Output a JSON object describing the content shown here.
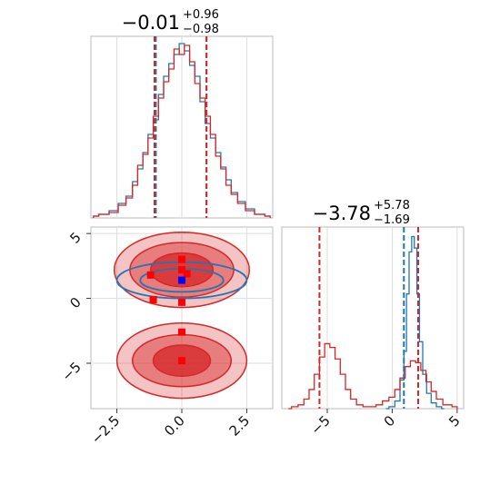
{
  "chart_data": [
    {
      "panel": "marginal-x",
      "type": "histogram-step",
      "title": {
        "main": "−0.01",
        "sup": "+0.96",
        "sub": "−0.98"
      },
      "xlim": [
        -3.5,
        3.5
      ],
      "x_ticks": [
        "−2.5",
        "0.0",
        "2.5"
      ],
      "quantile_lines": {
        "blue": [
          -1.0,
          0.95
        ],
        "red": [
          -1.05,
          0.95
        ]
      },
      "series": [
        {
          "color": "#1f77b4",
          "x": [
            -3.4,
            -3.0,
            -2.6,
            -2.3,
            -2.0,
            -1.8,
            -1.6,
            -1.4,
            -1.2,
            -1.0,
            -0.8,
            -0.6,
            -0.4,
            -0.2,
            0.0,
            0.2,
            0.4,
            0.6,
            0.8,
            1.0,
            1.2,
            1.4,
            1.6,
            1.8,
            2.0,
            2.3,
            2.6,
            3.0,
            3.4
          ],
          "y": [
            0.01,
            0.02,
            0.04,
            0.08,
            0.12,
            0.2,
            0.27,
            0.36,
            0.46,
            0.54,
            0.68,
            0.78,
            0.85,
            0.9,
            0.96,
            0.92,
            0.84,
            0.78,
            0.64,
            0.52,
            0.44,
            0.36,
            0.28,
            0.21,
            0.14,
            0.09,
            0.05,
            0.02,
            0.01
          ]
        },
        {
          "color": "#d62728",
          "x": [
            -3.4,
            -3.0,
            -2.6,
            -2.3,
            -2.0,
            -1.8,
            -1.6,
            -1.4,
            -1.2,
            -1.0,
            -0.8,
            -0.6,
            -0.4,
            -0.2,
            0.0,
            0.2,
            0.4,
            0.6,
            0.8,
            1.0,
            1.2,
            1.4,
            1.6,
            1.8,
            2.0,
            2.3,
            2.6,
            3.0,
            3.4
          ],
          "y": [
            0.01,
            0.02,
            0.03,
            0.07,
            0.11,
            0.18,
            0.29,
            0.35,
            0.44,
            0.56,
            0.66,
            0.75,
            0.82,
            0.93,
            0.9,
            0.95,
            0.86,
            0.74,
            0.66,
            0.56,
            0.46,
            0.34,
            0.27,
            0.18,
            0.13,
            0.08,
            0.04,
            0.02,
            0.01
          ]
        }
      ]
    },
    {
      "panel": "joint",
      "type": "contour-2d",
      "xlim": [
        -3.5,
        3.5
      ],
      "ylim": [
        -8.5,
        5.5
      ],
      "x_ticks": [
        "−2.5",
        "0.0",
        "2.5"
      ],
      "y_ticks": [
        "5",
        "0",
        "−5"
      ],
      "blue_contours": [
        {
          "cx": 0.0,
          "cy": 1.4,
          "rx": 2.5,
          "ry": 1.4
        },
        {
          "cx": 0.0,
          "cy": 1.4,
          "rx": 1.6,
          "ry": 0.9
        }
      ],
      "red_contours": [
        {
          "cx": 0.0,
          "cy": 2.2,
          "rx": 2.6,
          "ry": 2.9
        },
        {
          "cx": 0.0,
          "cy": 2.2,
          "rx": 2.0,
          "ry": 2.1
        },
        {
          "cx": 0.0,
          "cy": 2.2,
          "rx": 1.2,
          "ry": 1.3
        },
        {
          "cx": 0.0,
          "cy": -4.8,
          "rx": 2.5,
          "ry": 2.9
        },
        {
          "cx": 0.0,
          "cy": -4.8,
          "rx": 1.9,
          "ry": 2.0
        },
        {
          "cx": 0.0,
          "cy": -4.8,
          "rx": 1.1,
          "ry": 1.2
        }
      ],
      "blue_marker": {
        "x": 0.0,
        "y": 1.4
      },
      "red_markers": [
        [
          0.0,
          3.0
        ],
        [
          0.0,
          2.2
        ],
        [
          0.0,
          -0.3
        ],
        [
          0.0,
          -2.6
        ],
        [
          -1.2,
          1.8
        ],
        [
          0.2,
          1.9
        ],
        [
          -1.1,
          -0.1
        ],
        [
          0.0,
          -4.8
        ]
      ]
    },
    {
      "panel": "marginal-y",
      "type": "histogram-step",
      "title": {
        "main": "−3.78",
        "sup": "+5.78",
        "sub": "−1.69"
      },
      "xlim": [
        -8.5,
        5.5
      ],
      "x_ticks": [
        "−5",
        "0",
        "5"
      ],
      "quantile_lines": {
        "blue": [
          0.9
        ],
        "red": [
          -5.6,
          2.0
        ]
      },
      "series": [
        {
          "color": "#1f77b4",
          "x": [
            -0.5,
            0.0,
            0.4,
            0.8,
            1.0,
            1.2,
            1.4,
            1.6,
            1.8,
            2.0,
            2.2,
            2.5,
            2.8,
            3.2,
            3.6,
            4.0
          ],
          "y": [
            0.0,
            0.01,
            0.04,
            0.15,
            0.3,
            0.6,
            0.82,
            0.9,
            0.84,
            0.6,
            0.35,
            0.18,
            0.08,
            0.03,
            0.01,
            0.0
          ]
        },
        {
          "color": "#d62728",
          "x": [
            -8.0,
            -7.5,
            -7.0,
            -6.6,
            -6.2,
            -5.8,
            -5.4,
            -5.0,
            -4.6,
            -4.2,
            -3.8,
            -3.4,
            -3.0,
            -2.5,
            -2.0,
            -1.5,
            -1.0,
            -0.5,
            0.0,
            0.4,
            0.8,
            1.2,
            1.6,
            2.0,
            2.4,
            2.8,
            3.2,
            3.6,
            4.2,
            5.0
          ],
          "y": [
            0.0,
            0.01,
            0.02,
            0.05,
            0.1,
            0.18,
            0.27,
            0.34,
            0.32,
            0.26,
            0.18,
            0.1,
            0.05,
            0.02,
            0.01,
            0.01,
            0.02,
            0.04,
            0.06,
            0.1,
            0.16,
            0.22,
            0.25,
            0.24,
            0.2,
            0.14,
            0.09,
            0.05,
            0.02,
            0.01
          ]
        }
      ]
    }
  ]
}
